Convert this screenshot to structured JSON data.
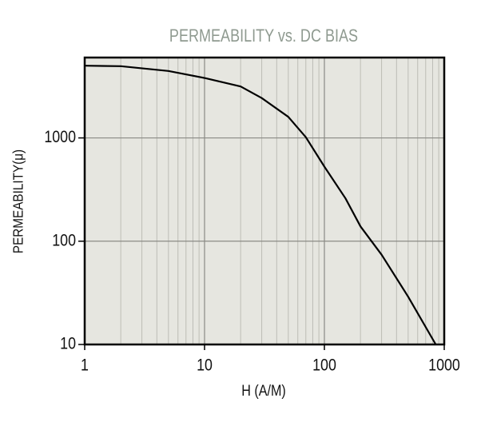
{
  "chart_data": {
    "type": "line",
    "title": "PERMEABILITY vs. DC BIAS",
    "x_label": "H (A/M)",
    "y_label": "PERMEABILITY(μ)",
    "x": [
      1,
      2,
      5,
      10,
      20,
      30,
      50,
      70,
      100,
      150,
      200,
      300,
      500,
      850
    ],
    "values": [
      5000,
      4950,
      4450,
      3800,
      3150,
      2430,
      1600,
      1015,
      527,
      260,
      139,
      74,
      29,
      10
    ],
    "color": "#000000",
    "log_x": true,
    "log_y": true,
    "grid": true,
    "xlim": [
      1,
      1000
    ],
    "ylim": [
      10,
      6000
    ],
    "xticks": [
      1,
      10,
      100,
      1000
    ],
    "yticks": [
      10,
      100,
      1000
    ],
    "xminorticks": [
      2,
      3,
      4,
      5,
      6,
      7,
      8,
      9,
      20,
      30,
      40,
      50,
      60,
      70,
      80,
      90,
      200,
      300,
      400,
      500,
      600,
      700,
      800,
      900
    ]
  }
}
